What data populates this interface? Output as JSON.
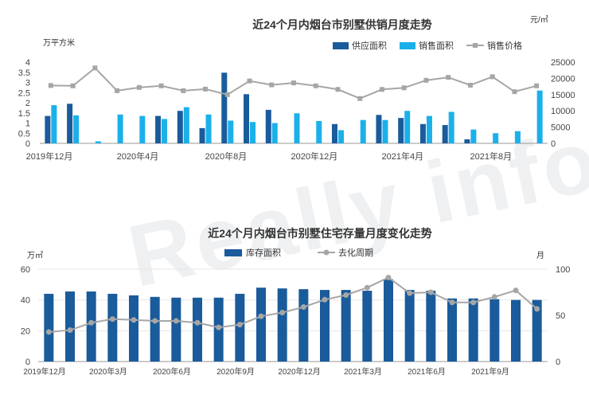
{
  "watermark": "Really info 锐理数据",
  "chart_data": [
    {
      "type": "bar",
      "title": "近24个月内烟台市别墅供销月度走势",
      "ylabel_left": "万平方米",
      "ylabel_right": "元/㎡",
      "ylim_left": [
        0,
        4
      ],
      "yticks_left": [
        "0",
        "0.5",
        "1",
        "1.5",
        "2",
        "2.5",
        "3",
        "3.5",
        "4"
      ],
      "ylim_right": [
        0,
        25000
      ],
      "yticks_right": [
        "0",
        "5000",
        "10000",
        "15000",
        "20000",
        "25000"
      ],
      "x_tick_labels": [
        "2019年12月",
        "2020年4月",
        "2020年8月",
        "2020年12月",
        "2021年4月",
        "2021年8月"
      ],
      "x_tick_indices": [
        0,
        4,
        8,
        12,
        16,
        20
      ],
      "series": [
        {
          "name": "供应面积",
          "kind": "bar",
          "axis": "left",
          "color": "#1a5b9b",
          "values": [
            1.35,
            1.95,
            0,
            0,
            0,
            1.35,
            1.6,
            0.75,
            3.48,
            2.42,
            1.65,
            0,
            0,
            0.95,
            0,
            1.4,
            1.25,
            0.95,
            0.9,
            0.2,
            0,
            0,
            0
          ]
        },
        {
          "name": "销售面积",
          "kind": "bar",
          "axis": "left",
          "color": "#1bb0ea",
          "values": [
            1.88,
            1.38,
            0.1,
            1.42,
            1.35,
            1.2,
            1.78,
            1.42,
            1.12,
            1.05,
            1.0,
            1.48,
            1.1,
            0.65,
            1.15,
            1.15,
            1.6,
            1.35,
            1.55,
            0.68,
            0.5,
            0.6,
            2.6
          ]
        },
        {
          "name": "销售价格",
          "kind": "line",
          "axis": "right",
          "color": "#a6a6a6",
          "values": [
            17800,
            17700,
            23200,
            16200,
            17200,
            17700,
            16200,
            16700,
            15000,
            19200,
            18000,
            18600,
            17700,
            16600,
            13800,
            16600,
            17100,
            19400,
            20300,
            17900,
            20500,
            15900,
            17700
          ]
        }
      ]
    },
    {
      "type": "bar",
      "title": "近24个月内烟台市别墅住宅存量月度变化走势",
      "ylabel_left": "万㎡",
      "ylabel_right": "月",
      "ylim_left": [
        0,
        60
      ],
      "yticks_left": [
        "0",
        "20",
        "40",
        "60"
      ],
      "ylim_right": [
        0,
        100
      ],
      "yticks_right": [
        "0",
        "50",
        "100"
      ],
      "x_tick_labels": [
        "2019年12月",
        "2020年3月",
        "2020年6月",
        "2020年9月",
        "2020年12月",
        "2021年3月",
        "2021年6月",
        "2021年9月"
      ],
      "x_tick_indices": [
        0,
        3,
        6,
        9,
        12,
        15,
        18,
        21
      ],
      "series": [
        {
          "name": "库存面积",
          "kind": "bar",
          "axis": "left",
          "color": "#1a5b9b",
          "values": [
            44,
            45.5,
            45.5,
            44,
            43,
            42,
            41.5,
            41.5,
            41.5,
            44,
            48,
            47.5,
            47,
            46.5,
            46.5,
            46,
            53.5,
            46.5,
            46,
            41,
            41,
            40.5,
            40,
            40
          ]
        },
        {
          "name": "去化周期",
          "kind": "line",
          "axis": "right",
          "color": "#a6a6a6",
          "values": [
            32,
            34,
            42,
            46,
            45,
            44,
            44,
            42,
            37,
            40,
            49,
            53,
            59,
            67,
            72,
            80,
            91,
            74,
            75,
            64,
            64,
            70,
            77,
            57
          ]
        }
      ]
    }
  ]
}
